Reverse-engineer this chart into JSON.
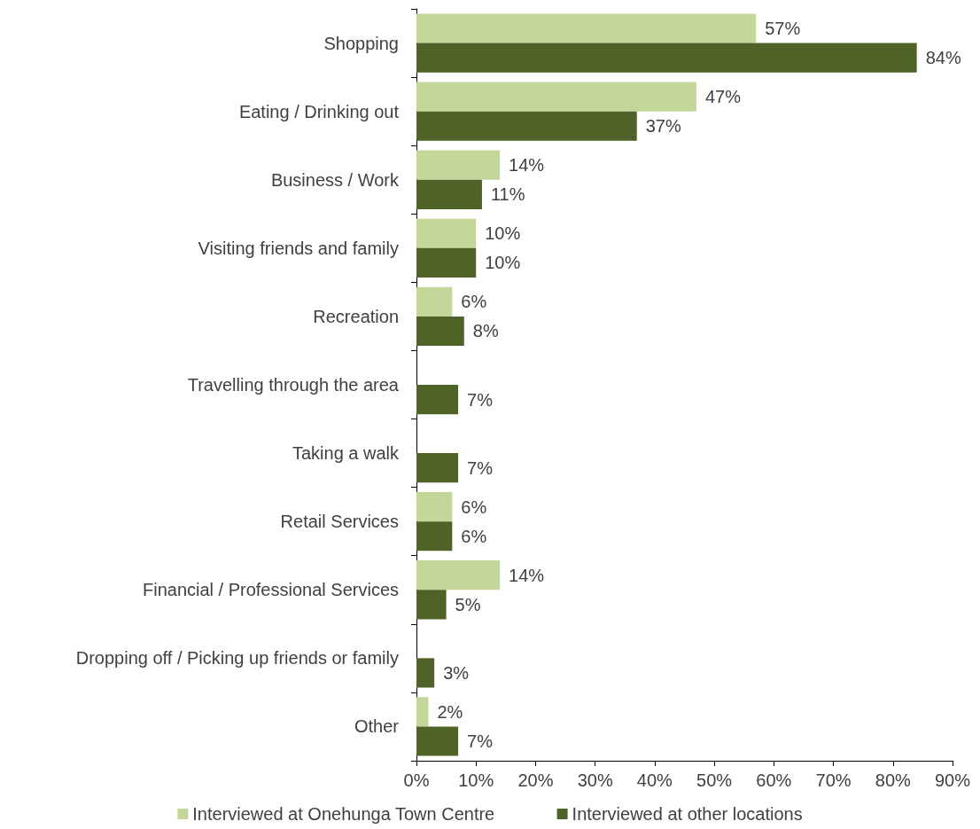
{
  "chart_data": {
    "type": "bar",
    "orientation": "horizontal",
    "categories": [
      "Shopping",
      "Eating / Drinking out",
      "Business / Work",
      "Visiting friends and family",
      "Recreation",
      "Travelling through the area",
      "Taking a walk",
      "Retail Services",
      "Financial / Professional Services",
      "Dropping off / Picking up friends or family",
      "Other"
    ],
    "series": [
      {
        "name": "Interviewed at Onehunga Town Centre",
        "color": "#c4d79b",
        "values": [
          57,
          47,
          14,
          10,
          6,
          null,
          null,
          6,
          14,
          null,
          2
        ],
        "value_labels": [
          "57%",
          "47%",
          "14%",
          "10%",
          "6%",
          null,
          null,
          "6%",
          "14%",
          null,
          "2%"
        ]
      },
      {
        "name": "Interviewed at other locations",
        "color": "#4f6228",
        "values": [
          84,
          37,
          11,
          10,
          8,
          7,
          7,
          6,
          5,
          3,
          7
        ],
        "value_labels": [
          "84%",
          "37%",
          "11%",
          "10%",
          "8%",
          "7%",
          "7%",
          "6%",
          "5%",
          "3%",
          "7%"
        ]
      }
    ],
    "xlim": [
      0,
      90
    ],
    "xticks": [
      {
        "value": 0,
        "label": "0%"
      },
      {
        "value": 10,
        "label": "10%"
      },
      {
        "value": 20,
        "label": "20%"
      },
      {
        "value": 30,
        "label": "30%"
      },
      {
        "value": 40,
        "label": "40%"
      },
      {
        "value": 50,
        "label": "50%"
      },
      {
        "value": 60,
        "label": "60%"
      },
      {
        "value": 70,
        "label": "70%"
      },
      {
        "value": 80,
        "label": "80%"
      },
      {
        "value": 90,
        "label": "90%"
      }
    ],
    "grid": false,
    "legend": "bottom"
  }
}
